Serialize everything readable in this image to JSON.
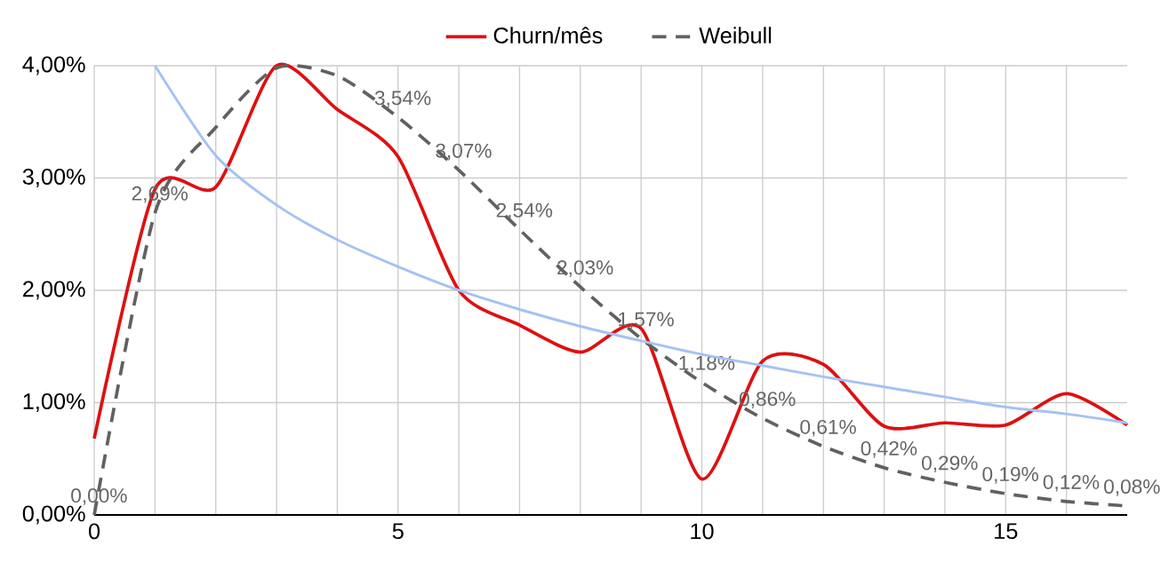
{
  "chart_data": {
    "type": "line",
    "x": [
      0,
      1,
      2,
      3,
      4,
      5,
      6,
      7,
      8,
      9,
      10,
      11,
      12,
      13,
      14,
      15,
      16,
      17
    ],
    "series": [
      {
        "name": "Churn/mês",
        "color": "#dd1111",
        "values": [
          0.68,
          2.9,
          2.92,
          4.0,
          3.61,
          3.19,
          2.0,
          1.69,
          1.45,
          1.66,
          0.32,
          1.37,
          1.34,
          0.79,
          0.82,
          0.8,
          1.08,
          0.8
        ]
      },
      {
        "name": "Weibull",
        "color": "#616161",
        "line_style": "dashed",
        "values": [
          0.0,
          2.69,
          3.45,
          3.98,
          3.91,
          3.54,
          3.07,
          2.54,
          2.03,
          1.57,
          1.18,
          0.86,
          0.61,
          0.42,
          0.29,
          0.19,
          0.12,
          0.08
        ],
        "value_labels": [
          "0,00%",
          "2,69%",
          null,
          null,
          null,
          "3,54%",
          "3,07%",
          "2,54%",
          "2,03%",
          "1,57%",
          "1,18%",
          "0,86%",
          "0,61%",
          "0,42%",
          "0,29%",
          "0,19%",
          "0,12%",
          "0,08%"
        ]
      },
      {
        "color": "#a4c2f4",
        "x": [
          1,
          2,
          3,
          4,
          5,
          6,
          7,
          8,
          9,
          10,
          11,
          12,
          13,
          14,
          15,
          16,
          17
        ],
        "values": [
          4.0,
          3.2,
          2.76,
          2.45,
          2.21,
          2.0,
          1.83,
          1.68,
          1.55,
          1.43,
          1.33,
          1.23,
          1.14,
          1.05,
          0.96,
          0.9,
          0.82
        ]
      }
    ],
    "xlim": [
      0,
      17
    ],
    "xticks": [
      0,
      {
        "value": 1,
        "label": null
      },
      {
        "value": 2,
        "label": null
      },
      {
        "value": 3,
        "label": null
      },
      {
        "value": 4,
        "label": null
      },
      5,
      {
        "value": 6,
        "label": null
      },
      {
        "value": 7,
        "label": null
      },
      {
        "value": 8,
        "label": null
      },
      {
        "value": 9,
        "label": null
      },
      10,
      {
        "value": 11,
        "label": null
      },
      {
        "value": 12,
        "label": null
      },
      {
        "value": 13,
        "label": null
      },
      {
        "value": 14,
        "label": null
      },
      15,
      {
        "value": 16,
        "label": null
      }
    ],
    "ylim": [
      0,
      4
    ],
    "yticks": [
      {
        "value": 0,
        "label": "0,00%"
      },
      {
        "value": 1,
        "label": "1,00%"
      },
      {
        "value": 2,
        "label": "2,00%"
      },
      {
        "value": 3,
        "label": "3,00%"
      },
      {
        "value": 4,
        "label": "4,00%"
      }
    ],
    "grid": true,
    "legend": "top"
  }
}
